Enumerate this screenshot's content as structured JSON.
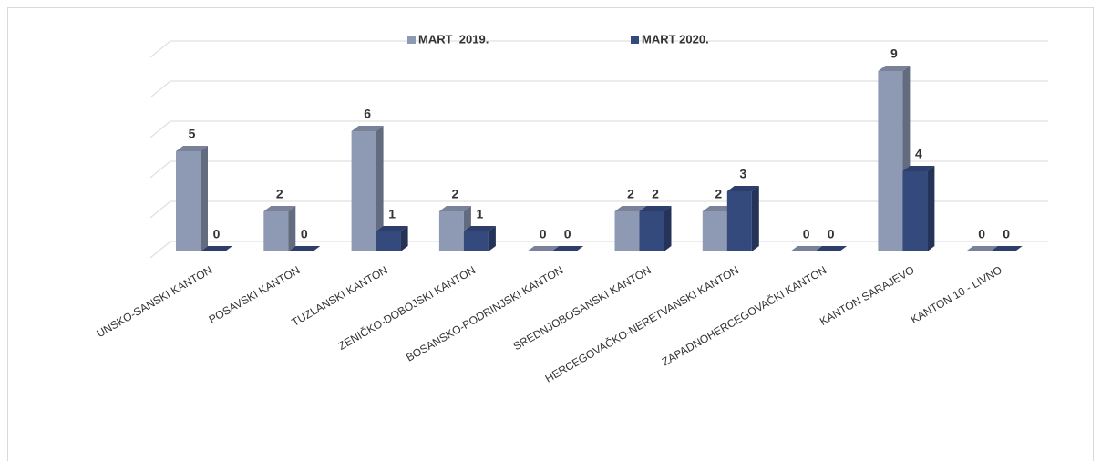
{
  "chart_data": {
    "type": "bar3d",
    "categories": [
      "UNSKO-SANSKI KANTON",
      "POSAVSKI KANTON",
      "TUZLANSKI KANTON",
      "ZENIČKO-DOBOJSKI KANTON",
      "BOSANSKO-PODRINJSKI KANTON",
      "SREDNJOBOSANSKI KANTON",
      "HERCEGOVAČKO-NERETVANSKI KANTON",
      "ZAPADNOHERCEGOVAČKI KANTON",
      "KANTON SARAJEVO",
      "KANTON 10 - LIVNO"
    ],
    "series": [
      {
        "name": "MART  2019.",
        "color": "#8e99b4",
        "values": [
          5,
          2,
          6,
          2,
          0,
          2,
          2,
          0,
          9,
          0
        ]
      },
      {
        "name": "MART 2020.",
        "color": "#34497c",
        "values": [
          0,
          0,
          1,
          1,
          0,
          2,
          3,
          0,
          4,
          0
        ]
      }
    ],
    "ylim": [
      0,
      10
    ],
    "yticks": [
      0,
      2,
      4,
      6,
      8,
      10
    ],
    "grid": true,
    "legend": "top"
  }
}
